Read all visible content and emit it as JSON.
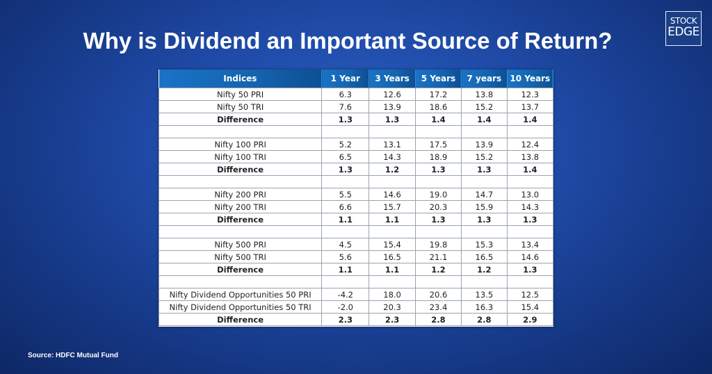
{
  "title": "Why is Dividend an Important Source of Return?",
  "logo": {
    "line1": "STOCK",
    "line2": "EDGE"
  },
  "source": "Source: HDFC Mutual Fund",
  "colors": {
    "header": "#1463ad",
    "background": "#1f4aa6"
  },
  "table": {
    "headers": [
      "Indices",
      "1 Year",
      "3 Years",
      "5 Years",
      "7 years",
      "10 Years"
    ],
    "rows": [
      {
        "type": "data",
        "cells": [
          "Nifty 50 PRI",
          "6.3",
          "12.6",
          "17.2",
          "13.8",
          "12.3"
        ]
      },
      {
        "type": "data",
        "cells": [
          "Nifty 50 TRI",
          "7.6",
          "13.9",
          "18.6",
          "15.2",
          "13.7"
        ]
      },
      {
        "type": "diff",
        "cells": [
          "Difference",
          "1.3",
          "1.3",
          "1.4",
          "1.4",
          "1.4"
        ]
      },
      {
        "type": "blank",
        "cells": [
          "",
          "",
          "",
          "",
          "",
          ""
        ]
      },
      {
        "type": "data",
        "cells": [
          "Nifty 100 PRI",
          "5.2",
          "13.1",
          "17.5",
          "13.9",
          "12.4"
        ]
      },
      {
        "type": "data",
        "cells": [
          "Nifty 100 TRI",
          "6.5",
          "14.3",
          "18.9",
          "15.2",
          "13.8"
        ]
      },
      {
        "type": "diff",
        "cells": [
          "Difference",
          "1.3",
          "1.2",
          "1.3",
          "1.3",
          "1.4"
        ]
      },
      {
        "type": "blank",
        "cells": [
          "",
          "",
          "",
          "",
          "",
          ""
        ]
      },
      {
        "type": "data",
        "cells": [
          "Nifty 200 PRI",
          "5.5",
          "14.6",
          "19.0",
          "14.7",
          "13.0"
        ]
      },
      {
        "type": "data",
        "cells": [
          "Nifty 200 TRI",
          "6.6",
          "15.7",
          "20.3",
          "15.9",
          "14.3"
        ]
      },
      {
        "type": "diff",
        "cells": [
          "Difference",
          "1.1",
          "1.1",
          "1.3",
          "1.3",
          "1.3"
        ]
      },
      {
        "type": "blank",
        "cells": [
          "",
          "",
          "",
          "",
          "",
          ""
        ]
      },
      {
        "type": "data",
        "cells": [
          "Nifty 500 PRI",
          "4.5",
          "15.4",
          "19.8",
          "15.3",
          "13.4"
        ]
      },
      {
        "type": "data",
        "cells": [
          "Nifty 500 TRI",
          "5.6",
          "16.5",
          "21.1",
          "16.5",
          "14.6"
        ]
      },
      {
        "type": "diff",
        "cells": [
          "Difference",
          "1.1",
          "1.1",
          "1.2",
          "1.2",
          "1.3"
        ]
      },
      {
        "type": "blank",
        "cells": [
          "",
          "",
          "",
          "",
          "",
          ""
        ]
      },
      {
        "type": "data",
        "cells": [
          "Nifty Dividend Opportunities 50 PRI",
          "-4.2",
          "18.0",
          "20.6",
          "13.5",
          "12.5"
        ]
      },
      {
        "type": "data",
        "cells": [
          "Nifty Dividend Opportunities 50 TRI",
          "-2.0",
          "20.3",
          "23.4",
          "16.3",
          "15.4"
        ]
      },
      {
        "type": "diff",
        "cells": [
          "Difference",
          "2.3",
          "2.3",
          "2.8",
          "2.8",
          "2.9"
        ]
      }
    ]
  }
}
